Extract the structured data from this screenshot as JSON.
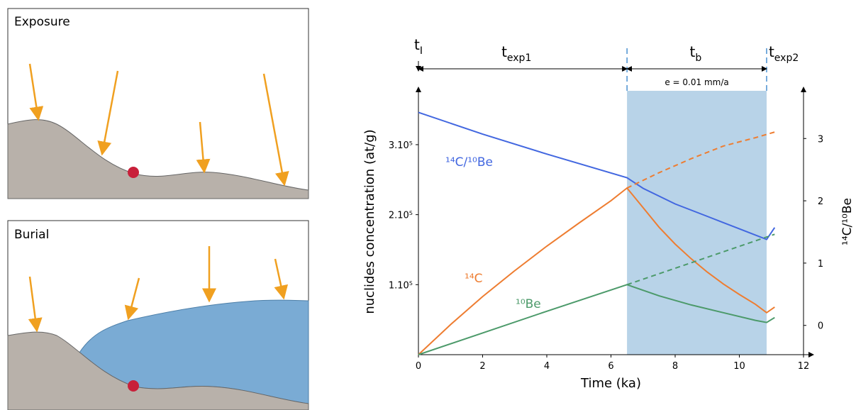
{
  "panels": {
    "exposure": {
      "title": "Exposure"
    },
    "burial": {
      "title": "Burial"
    }
  },
  "chart_data": {
    "type": "line",
    "xlabel": "Time (ka)",
    "ylabel": "nuclides concentration (at/g)",
    "y2label": "¹⁴C/¹⁰Be",
    "xlim": [
      0,
      12
    ],
    "xticks": [
      0,
      2,
      4,
      6,
      8,
      10,
      12
    ],
    "ylim": [
      0,
      380000
    ],
    "yticks": [
      {
        "value": 100000,
        "label": "1.10⁵"
      },
      {
        "value": 200000,
        "label": "2.10⁵"
      },
      {
        "value": 300000,
        "label": "3.10⁵"
      }
    ],
    "y2lim": [
      -0.47,
      3.8
    ],
    "y2ticks": [
      0,
      1,
      2,
      3
    ],
    "burial": [
      6.5,
      10.85
    ],
    "burial_color": "#b8d3e8",
    "burial_note": "e = 0.01 mm/a",
    "phases": [
      {
        "base": "t",
        "sub": "I"
      },
      {
        "base": "t",
        "sub": "exp1"
      },
      {
        "base": "t",
        "sub": "b"
      },
      {
        "base": "t",
        "sub": "exp2"
      }
    ],
    "series": [
      {
        "name": "¹⁴C/¹⁰Be",
        "color": "#4267e0",
        "axis": "y2",
        "x": [
          0,
          2,
          4,
          6.5,
          7,
          8,
          9,
          10,
          10.85,
          11.1
        ],
        "values": [
          3.42,
          3.07,
          2.75,
          2.37,
          2.2,
          1.95,
          1.75,
          1.55,
          1.38,
          1.57
        ]
      },
      {
        "name": "¹⁴C",
        "color": "#ee7d31",
        "x": [
          0,
          1,
          2,
          3,
          4,
          5,
          6,
          6.5,
          7,
          7.5,
          8,
          8.5,
          9,
          9.5,
          10,
          10.5,
          10.85,
          11.1
        ],
        "values": [
          0,
          43000,
          83000,
          120000,
          155000,
          188000,
          220000,
          238000,
          210000,
          182000,
          158000,
          137000,
          118000,
          101000,
          86000,
          72000,
          60000,
          68000
        ]
      },
      {
        "color": "#ee7d31",
        "dashed": true,
        "x": [
          6.5,
          7.5,
          8.5,
          9.5,
          10.5,
          11.1
        ],
        "values": [
          238000,
          260000,
          280000,
          298000,
          310000,
          318000
        ]
      },
      {
        "name": "¹⁰Be",
        "color": "#4c9a6a",
        "x": [
          0,
          2,
          4,
          6.5,
          7.5,
          8.5,
          9.5,
          10.5,
          10.85,
          11.1
        ],
        "values": [
          0,
          31000,
          62000,
          100000,
          84000,
          71000,
          60000,
          49000,
          46000,
          53000
        ]
      },
      {
        "color": "#4c9a6a",
        "dashed": true,
        "x": [
          6.5,
          11.1
        ],
        "values": [
          100000,
          172000
        ]
      }
    ]
  }
}
